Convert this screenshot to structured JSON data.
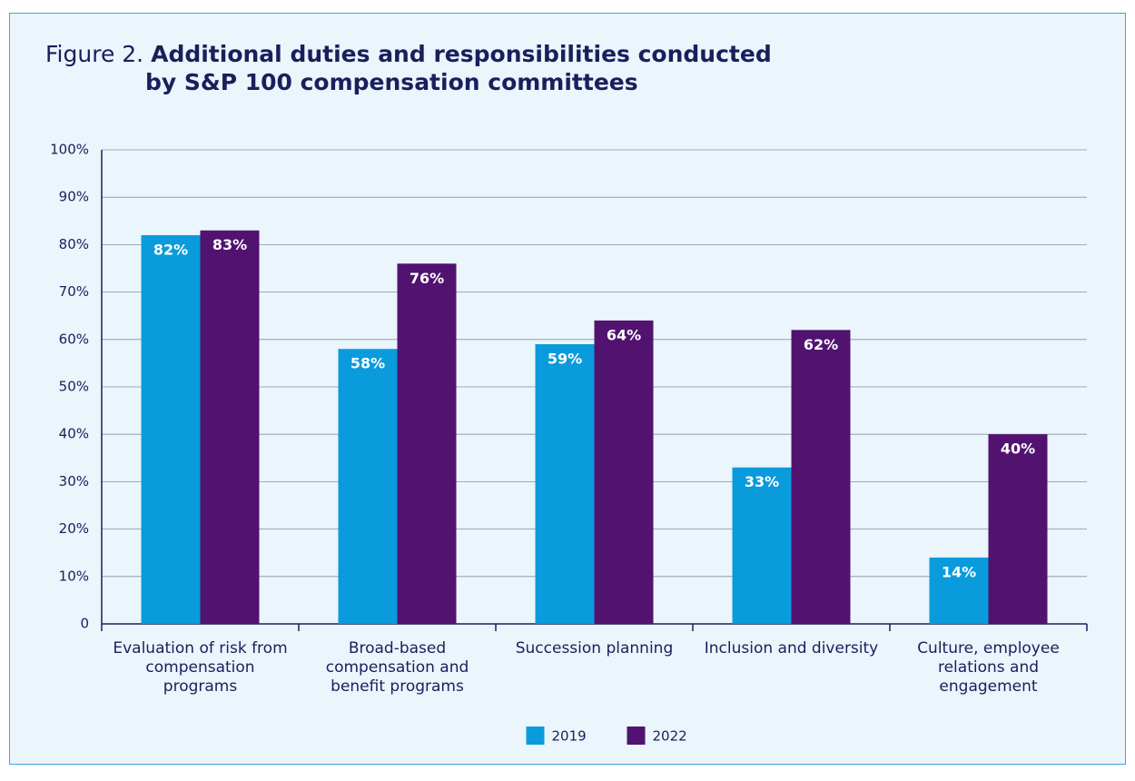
{
  "chart_data": {
    "type": "bar",
    "figure_label": "Figure 2.",
    "title": "Additional duties and responsibilities conducted by S&P 100 compensation committees",
    "categories": [
      "Evaluation of risk from compensation programs",
      "Broad-based compensation and benefit programs",
      "Succession planning",
      "Inclusion and diversity",
      "Culture, employee relations and engagement"
    ],
    "series": [
      {
        "name": "2019",
        "color": "#0a9bdc",
        "values": [
          82,
          58,
          59,
          33,
          14
        ],
        "value_labels": [
          "82%",
          "58%",
          "59%",
          "33%",
          "14%"
        ]
      },
      {
        "name": "2022",
        "color": "#521270",
        "values": [
          83,
          76,
          64,
          62,
          40
        ],
        "value_labels": [
          "83%",
          "76%",
          "64%",
          "62%",
          "40%"
        ]
      }
    ],
    "ylim": [
      0,
      100
    ],
    "yticks": [
      0,
      {
        "value": 10,
        "label": "10%"
      },
      {
        "value": 20,
        "label": "20%"
      },
      {
        "value": 30,
        "label": "30%"
      },
      {
        "value": 40,
        "label": "40%"
      },
      {
        "value": 50,
        "label": "50%"
      },
      {
        "value": 60,
        "label": "60%"
      },
      {
        "value": 70,
        "label": "70%"
      },
      {
        "value": 80,
        "label": "80%"
      },
      {
        "value": 90,
        "label": "90%"
      },
      {
        "value": 100,
        "label": "100%"
      }
    ],
    "grid": true,
    "legend": "bottom"
  }
}
